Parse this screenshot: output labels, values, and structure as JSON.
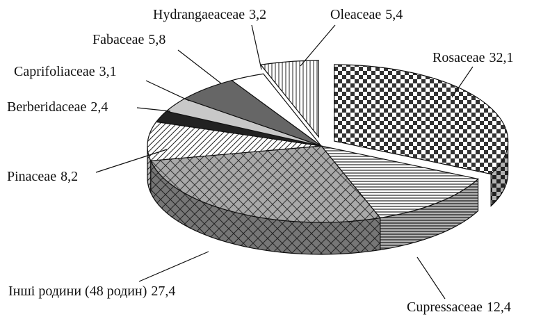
{
  "chart_data": {
    "type": "pie",
    "categories": [
      "Rosaceae",
      "Cupressaceae",
      "Інші родини (48 родин)",
      "Pinaceae",
      "Berberidaceae",
      "Caprifoliaceae",
      "Fabaceae",
      "Hydrangaeaceae",
      "Oleaceae"
    ],
    "values": [
      32.1,
      12.4,
      27.4,
      8.2,
      2.4,
      3.1,
      5.8,
      3.2,
      5.4
    ],
    "value_labels": [
      "32,1",
      "12,4",
      "27,4",
      "8,2",
      "2,4",
      "3,1",
      "5,8",
      "3,2",
      "5,4"
    ],
    "fills": [
      "checker",
      "hlines",
      "crosshatch",
      "diagonal",
      "black",
      "light",
      "dark",
      "white",
      "vlines"
    ],
    "exploded": [
      true,
      false,
      false,
      false,
      false,
      false,
      false,
      false,
      true
    ]
  }
}
